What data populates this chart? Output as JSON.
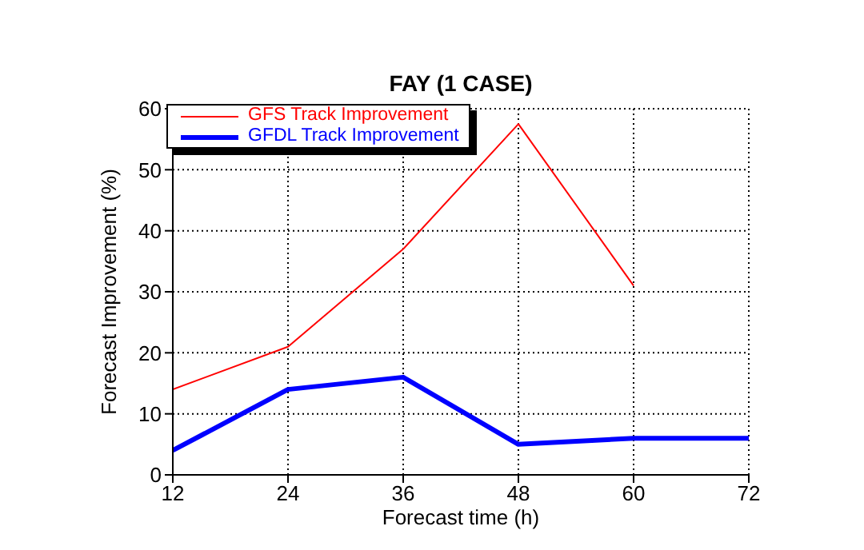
{
  "chart_data": {
    "type": "line",
    "title": "FAY (1 CASE)",
    "xlabel": "Forecast time (h)",
    "ylabel": "Forecast Improvement (%)",
    "x": [
      12,
      24,
      36,
      48,
      60,
      72
    ],
    "series": [
      {
        "name": "GFS Track Improvement",
        "color": "#ff0000",
        "values": [
          14,
          21,
          37,
          57.5,
          31,
          null
        ]
      },
      {
        "name": "GFDL Track Improvement",
        "color": "#0000ff",
        "values": [
          4,
          14,
          16,
          5,
          6,
          6
        ]
      }
    ],
    "xlim": [
      12,
      72
    ],
    "xticks": [
      12,
      24,
      36,
      48,
      60,
      72
    ],
    "ylim": [
      0,
      60
    ],
    "yticks": [
      0,
      10,
      20,
      30,
      40,
      50,
      60
    ],
    "grid": true,
    "legend": "top left",
    "marker": "none",
    "line_style": "solid"
  }
}
